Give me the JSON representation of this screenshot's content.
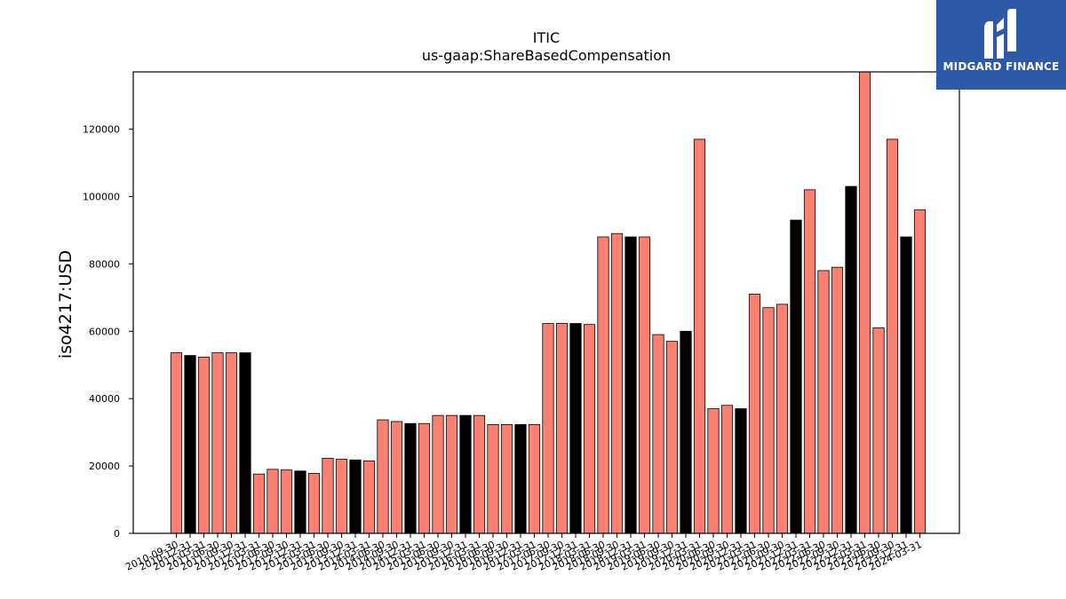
{
  "chart_data": {
    "type": "bar",
    "title": "ITIC",
    "subtitle": "us-gaap:ShareBasedCompensation",
    "ylabel": "iso4217:USD",
    "xlabel": "",
    "ylim": [
      0,
      137000
    ],
    "yticks": [
      0,
      20000,
      40000,
      60000,
      80000,
      100000,
      120000
    ],
    "grid": false,
    "colors": {
      "default": "#fa8072",
      "highlight": "#000000",
      "edge": "#000000"
    },
    "categories": [
      "2010-09-30",
      "2010-12-31",
      "2011-03-31",
      "2011-06-30",
      "2011-09-30",
      "2011-12-31",
      "2012-03-31",
      "2012-06-30",
      "2012-09-30",
      "2012-12-31",
      "2013-03-31",
      "2013-06-30",
      "2013-09-30",
      "2013-12-31",
      "2014-03-31",
      "2014-06-30",
      "2014-09-30",
      "2014-12-31",
      "2015-03-31",
      "2015-06-30",
      "2015-09-30",
      "2015-12-31",
      "2016-03-31",
      "2016-06-30",
      "2016-09-30",
      "2016-12-31",
      "2017-03-31",
      "2017-06-30",
      "2017-09-30",
      "2017-12-31",
      "2018-03-31",
      "2018-06-30",
      "2018-09-30",
      "2018-12-31",
      "2019-03-31",
      "2019-06-30",
      "2019-09-30",
      "2019-12-31",
      "2020-03-31",
      "2020-06-30",
      "2020-09-30",
      "2020-12-31",
      "2021-03-31",
      "2021-06-30",
      "2021-09-30",
      "2021-12-31",
      "2022-03-31",
      "2022-06-30",
      "2022-09-30",
      "2022-12-31",
      "2023-03-31",
      "2023-06-30",
      "2023-09-30",
      "2023-12-31",
      "2024-03-31"
    ],
    "values": [
      53600,
      52800,
      52300,
      53600,
      53600,
      53600,
      17600,
      19000,
      18800,
      18500,
      17800,
      22300,
      22000,
      21800,
      21500,
      33700,
      33200,
      32600,
      32600,
      35000,
      35000,
      35000,
      35000,
      32300,
      32300,
      32300,
      32300,
      62300,
      62300,
      62300,
      62000,
      88000,
      89000,
      88000,
      88000,
      59000,
      57000,
      60000,
      117000,
      37000,
      38000,
      37000,
      71000,
      67000,
      68000,
      93000,
      102000,
      78000,
      79000,
      103000,
      137000,
      61000,
      117000,
      88000,
      96000
    ],
    "highlight": [
      false,
      true,
      false,
      false,
      false,
      true,
      false,
      false,
      false,
      true,
      false,
      false,
      false,
      true,
      false,
      false,
      false,
      true,
      false,
      false,
      false,
      true,
      false,
      false,
      false,
      true,
      false,
      false,
      false,
      true,
      false,
      false,
      false,
      true,
      false,
      false,
      false,
      true,
      false,
      false,
      false,
      true,
      false,
      false,
      false,
      true,
      false,
      false,
      false,
      true,
      false,
      false,
      false,
      true,
      false
    ]
  },
  "logo": {
    "text": "MIDGARD FINANCE",
    "icon": "midgard-logo-icon"
  }
}
